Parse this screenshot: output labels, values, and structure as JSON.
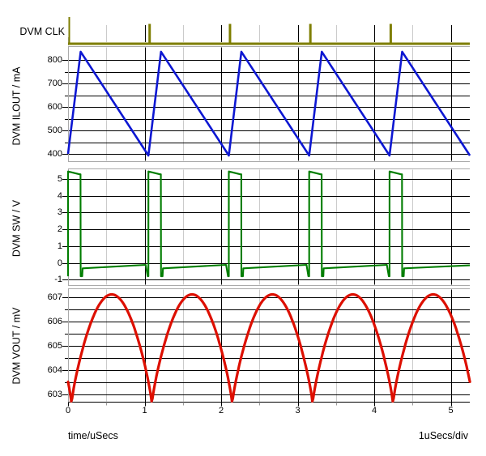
{
  "xaxis": {
    "label": "time/uSecs",
    "div_label": "1uSecs/div",
    "ticks": [
      0,
      1,
      2,
      3,
      4,
      5
    ],
    "minor_step_us": 0.5,
    "xlim": [
      0,
      5.25
    ]
  },
  "grid": {
    "major_color": "#000000",
    "minor_vertical_color": "#cbcbcb",
    "border_color": "#aaaaaa",
    "minor_tick_color": "#999999",
    "background": "#ffffff"
  },
  "chart_data": [
    {
      "id": "clk",
      "name": "DVM CLK",
      "type": "line",
      "color": "#7e7e00",
      "xlim": [
        0,
        5.25
      ],
      "pulse_times": [
        0,
        1.05,
        2.1,
        3.15,
        4.2
      ],
      "pulse_width_us": 0.03,
      "low": 0,
      "high": 1,
      "note": "narrow clock pulses at each switching period; first pulse drawn taller"
    },
    {
      "id": "ilout",
      "name": "DVM ILOUT / mA",
      "type": "line",
      "color": "#0d17d2",
      "xlim": [
        0,
        5.25
      ],
      "ylim": [
        375,
        848
      ],
      "yticks_major": [
        400,
        500,
        600,
        700,
        800
      ],
      "grid_step": 50,
      "points": [
        [
          0,
          400
        ],
        [
          0.165,
          835
        ],
        [
          1.05,
          393
        ],
        [
          1.215,
          835
        ],
        [
          2.1,
          393
        ],
        [
          2.265,
          835
        ],
        [
          3.15,
          393
        ],
        [
          3.315,
          835
        ],
        [
          4.2,
          393
        ],
        [
          4.365,
          835
        ],
        [
          5.25,
          393
        ]
      ]
    },
    {
      "id": "sw",
      "name": "DVM SW / V",
      "type": "line",
      "color": "#007d00",
      "xlim": [
        0,
        5.25
      ],
      "ylim": [
        -1.3,
        5.6
      ],
      "yticks_major": [
        -1,
        0,
        1,
        2,
        3,
        4,
        5
      ],
      "grid_step": 1,
      "points": [
        [
          0,
          -0.8
        ],
        [
          0,
          5.45
        ],
        [
          0.15,
          5.28
        ],
        [
          0.163,
          5.28
        ],
        [
          0.165,
          -0.8
        ],
        [
          0.185,
          -0.8
        ],
        [
          0.19,
          -0.33
        ],
        [
          1.015,
          -0.12
        ],
        [
          1.04,
          -0.8
        ],
        [
          1.05,
          -0.8
        ],
        [
          1.05,
          5.45
        ],
        [
          1.2,
          5.28
        ],
        [
          1.213,
          5.28
        ],
        [
          1.215,
          -0.8
        ],
        [
          1.235,
          -0.8
        ],
        [
          1.24,
          -0.33
        ],
        [
          2.065,
          -0.12
        ],
        [
          2.09,
          -0.8
        ],
        [
          2.1,
          -0.8
        ],
        [
          2.1,
          5.45
        ],
        [
          2.25,
          5.28
        ],
        [
          2.263,
          5.28
        ],
        [
          2.265,
          -0.8
        ],
        [
          2.285,
          -0.8
        ],
        [
          2.29,
          -0.33
        ],
        [
          3.115,
          -0.12
        ],
        [
          3.14,
          -0.8
        ],
        [
          3.15,
          -0.8
        ],
        [
          3.15,
          5.45
        ],
        [
          3.3,
          5.28
        ],
        [
          3.313,
          5.28
        ],
        [
          3.315,
          -0.8
        ],
        [
          3.335,
          -0.8
        ],
        [
          3.34,
          -0.33
        ],
        [
          4.165,
          -0.12
        ],
        [
          4.19,
          -0.8
        ],
        [
          4.2,
          -0.8
        ],
        [
          4.2,
          5.45
        ],
        [
          4.35,
          5.28
        ],
        [
          4.363,
          5.28
        ],
        [
          4.365,
          -0.8
        ],
        [
          4.385,
          -0.8
        ],
        [
          4.39,
          -0.33
        ],
        [
          5.25,
          -0.15
        ]
      ]
    },
    {
      "id": "vout",
      "name": "DVM VOUT / mV",
      "type": "line",
      "color": "#dd0f00",
      "xlim": [
        0,
        5.25
      ],
      "ylim": [
        602.5,
        607.3
      ],
      "yticks_major": [
        603,
        604,
        605,
        606,
        607
      ],
      "grid_step": 0.5,
      "ripple": {
        "min_mV": 602.6,
        "max_mV": 607.1,
        "period_us": 1.05,
        "first_min_t": 0.045,
        "shape_power": 0.8
      },
      "minima_t": [
        0.045,
        1.095,
        2.145,
        3.195,
        4.245
      ],
      "maxima_t": [
        0.57,
        1.62,
        2.67,
        3.72,
        4.77
      ]
    }
  ]
}
